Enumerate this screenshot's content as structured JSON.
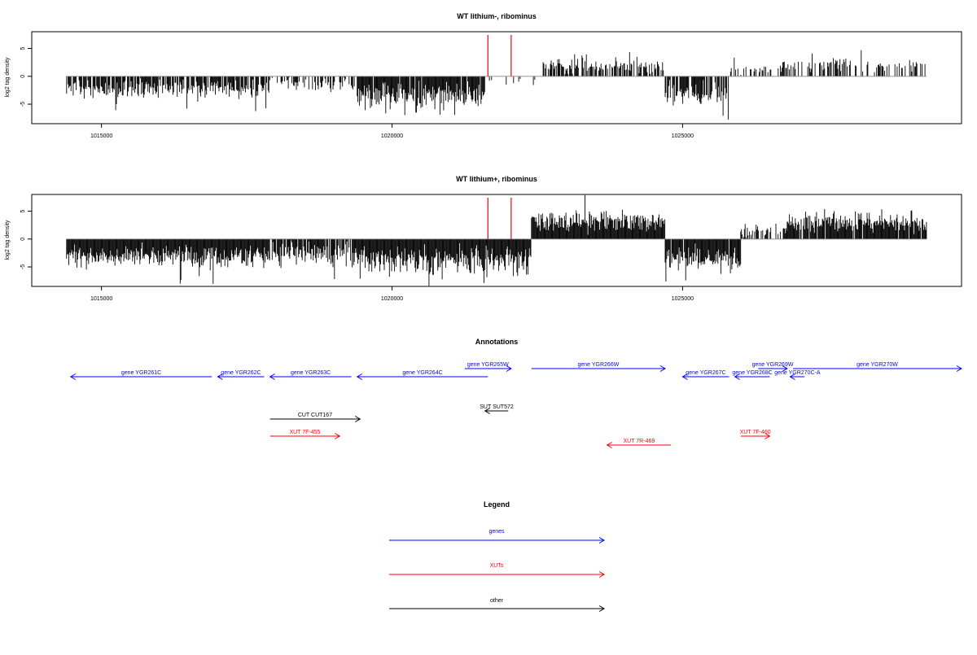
{
  "chart_data": [
    {
      "type": "bar",
      "title": "WT lithium-, ribominus",
      "xlabel": "",
      "ylabel": "log2 tag density",
      "xlim": [
        1013800,
        1029800
      ],
      "ylim": [
        -8.5,
        8
      ],
      "x_ticks": [
        1015000,
        1020000,
        1025000
      ],
      "x_tick_labels": [
        "1015000",
        "1020000",
        "1025000"
      ],
      "y_ticks": [
        5,
        0,
        -5
      ],
      "y_tick_labels": [
        "5",
        "0",
        "-5"
      ],
      "baseline": 0,
      "markers": {
        "color": "#ff0000",
        "x": [
          1021650,
          1022050
        ]
      },
      "segments": [
        {
          "x0": 1014400,
          "x1": 1017900,
          "mean": -2.3,
          "spread": 1.3,
          "density": 0.8,
          "seed": 11
        },
        {
          "x0": 1017900,
          "x1": 1019400,
          "mean": -1.4,
          "spread": 1.0,
          "density": 0.45,
          "seed": 12
        },
        {
          "x0": 1019400,
          "x1": 1021600,
          "mean": -3.5,
          "spread": 2.0,
          "density": 0.95,
          "seed": 13
        },
        {
          "x0": 1021600,
          "x1": 1022600,
          "mean": -0.8,
          "spread": 0.6,
          "density": 0.12,
          "seed": 14
        },
        {
          "x0": 1022600,
          "x1": 1024700,
          "mean": 2.0,
          "spread": 1.0,
          "density": 0.6,
          "seed": 15
        },
        {
          "x0": 1024700,
          "x1": 1025800,
          "mean": -3.0,
          "spread": 1.5,
          "density": 0.7,
          "seed": 16
        },
        {
          "x0": 1025800,
          "x1": 1026700,
          "mean": 1.3,
          "spread": 0.8,
          "density": 0.3,
          "seed": 17
        },
        {
          "x0": 1026700,
          "x1": 1029200,
          "mean": 2.1,
          "spread": 0.9,
          "density": 0.45,
          "seed": 18
        }
      ]
    },
    {
      "type": "bar",
      "title": "WT lithium+, ribominus",
      "xlabel": "",
      "ylabel": "log2 tag density",
      "xlim": [
        1013800,
        1029800
      ],
      "ylim": [
        -8.5,
        8
      ],
      "x_ticks": [
        1015000,
        1020000,
        1025000
      ],
      "x_tick_labels": [
        "1015000",
        "1020000",
        "1025000"
      ],
      "y_ticks": [
        5,
        0,
        -5
      ],
      "y_tick_labels": [
        "5",
        "0",
        "-5"
      ],
      "baseline": 0,
      "markers": {
        "color": "#ff0000",
        "x": [
          1021650,
          1022050
        ]
      },
      "segments": [
        {
          "x0": 1014400,
          "x1": 1017900,
          "mean": -3.0,
          "spread": 1.6,
          "density": 1.0,
          "seed": 21
        },
        {
          "x0": 1017900,
          "x1": 1019400,
          "mean": -2.6,
          "spread": 1.8,
          "density": 0.9,
          "seed": 22
        },
        {
          "x0": 1019400,
          "x1": 1022400,
          "mean": -3.8,
          "spread": 1.9,
          "density": 1.0,
          "seed": 23
        },
        {
          "x0": 1022400,
          "x1": 1024700,
          "mean": 3.0,
          "spread": 1.4,
          "density": 1.0,
          "seed": 24
        },
        {
          "x0": 1024700,
          "x1": 1026000,
          "mean": -3.5,
          "spread": 1.6,
          "density": 0.95,
          "seed": 25
        },
        {
          "x0": 1026000,
          "x1": 1026800,
          "mean": 1.5,
          "spread": 0.9,
          "density": 0.5,
          "seed": 26
        },
        {
          "x0": 1026800,
          "x1": 1029200,
          "mean": 3.0,
          "spread": 1.3,
          "density": 0.95,
          "seed": 27
        }
      ]
    }
  ],
  "annotations": {
    "title": "Annotations",
    "xlim": [
      1013800,
      1029800
    ],
    "colors": {
      "genes": "#0000ff",
      "XUTs": "#ff0000",
      "other": "#000000"
    },
    "features": [
      {
        "label": "gene YGR261C",
        "category": "genes",
        "start": 1014470,
        "end": 1016900,
        "strand": "-",
        "row": 1
      },
      {
        "label": "gene YGR262C",
        "category": "genes",
        "start": 1017000,
        "end": 1017800,
        "strand": "-",
        "row": 1
      },
      {
        "label": "gene YGR263C",
        "category": "genes",
        "start": 1017900,
        "end": 1019300,
        "strand": "-",
        "row": 1
      },
      {
        "label": "gene YGR264C",
        "category": "genes",
        "start": 1019400,
        "end": 1021650,
        "strand": "-",
        "row": 1
      },
      {
        "label": "gene YGR265W",
        "category": "genes",
        "start": 1021250,
        "end": 1022050,
        "strand": "+",
        "row": 0
      },
      {
        "label": "gene YGR266W",
        "category": "genes",
        "start": 1022400,
        "end": 1024700,
        "strand": "+",
        "row": 0
      },
      {
        "label": "gene YGR267C",
        "category": "genes",
        "start": 1025000,
        "end": 1025800,
        "strand": "-",
        "row": 1
      },
      {
        "label": "gene YGR268C",
        "category": "genes",
        "start": 1025900,
        "end": 1026500,
        "strand": "-",
        "row": 1
      },
      {
        "label": "gene YGR269W",
        "category": "genes",
        "start": 1026300,
        "end": 1026800,
        "strand": "+",
        "row": 0
      },
      {
        "label": "gene YGR270C-A",
        "category": "genes",
        "start": 1026850,
        "end": 1027100,
        "strand": "-",
        "row": 1
      },
      {
        "label": "gene YGR270W",
        "category": "genes",
        "start": 1026900,
        "end": 1029800,
        "strand": "+",
        "row": 0
      },
      {
        "label": "CUT CUT167",
        "category": "other",
        "start": 1017900,
        "end": 1019450,
        "strand": "+",
        "row": 3
      },
      {
        "label": "SUT SUT572",
        "category": "other",
        "start": 1021600,
        "end": 1022000,
        "strand": "-",
        "row": 2
      },
      {
        "label": "XUT 7F-455",
        "category": "XUTs",
        "start": 1017900,
        "end": 1019100,
        "strand": "+",
        "row": 4
      },
      {
        "label": "XUT 7R-469",
        "category": "XUTs",
        "start": 1023700,
        "end": 1024800,
        "strand": "-",
        "row": 5
      },
      {
        "label": "XUT 7F-460",
        "category": "XUTs",
        "start": 1026000,
        "end": 1026500,
        "strand": "+",
        "row": 4
      }
    ]
  },
  "legend": {
    "title": "Legend",
    "entries": [
      {
        "label": "genes",
        "color": "#0000ff"
      },
      {
        "label": "XUTs",
        "color": "#ff0000"
      },
      {
        "label": "other",
        "color": "#000000"
      }
    ]
  }
}
